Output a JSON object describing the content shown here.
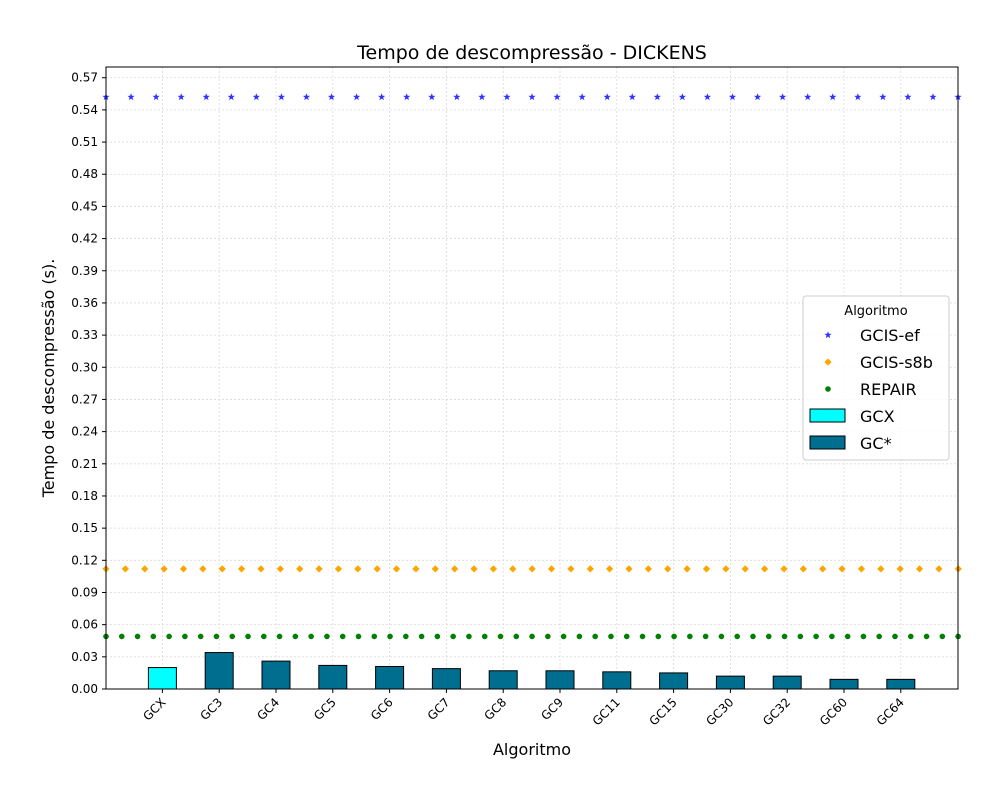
{
  "chart_data": {
    "type": "bar",
    "title": "Tempo de descompressão -  DICKENS",
    "xlabel": "Algoritmo",
    "ylabel": "Tempo de descompressão (s).",
    "categories": [
      "GCX",
      "GC3",
      "GC4",
      "GC5",
      "GC6",
      "GC7",
      "GC8",
      "GC9",
      "GC11",
      "GC15",
      "GC30",
      "GC32",
      "GC60",
      "GC64"
    ],
    "bars": {
      "values": [
        0.02,
        0.034,
        0.026,
        0.022,
        0.021,
        0.019,
        0.017,
        0.017,
        0.016,
        0.015,
        0.012,
        0.012,
        0.009,
        0.009
      ],
      "colors": [
        "#00ffff",
        "#006e8f",
        "#006e8f",
        "#006e8f",
        "#006e8f",
        "#006e8f",
        "#006e8f",
        "#006e8f",
        "#006e8f",
        "#006e8f",
        "#006e8f",
        "#006e8f",
        "#006e8f",
        "#006e8f"
      ],
      "edge_color": "#000000"
    },
    "reference_lines": [
      {
        "name": "GCIS-ef",
        "value": 0.552,
        "marker": "star",
        "color": "#3333ff"
      },
      {
        "name": "GCIS-s8b",
        "value": 0.112,
        "marker": "diamond",
        "color": "#ffa500"
      },
      {
        "name": "REPAIR",
        "value": 0.049,
        "marker": "circle",
        "color": "#008000"
      }
    ],
    "ylim": [
      0,
      0.58
    ],
    "yticks": [
      "0.00",
      "0.03",
      "0.06",
      "0.09",
      "0.12",
      "0.15",
      "0.18",
      "0.21",
      "0.24",
      "0.27",
      "0.30",
      "0.33",
      "0.36",
      "0.39",
      "0.42",
      "0.45",
      "0.48",
      "0.51",
      "0.54",
      "0.57"
    ],
    "grid": true,
    "legend": {
      "title": "Algoritmo",
      "position": "center-right",
      "entries": [
        {
          "label": "GCIS-ef",
          "kind": "marker",
          "marker": "star",
          "color": "#3333ff"
        },
        {
          "label": "GCIS-s8b",
          "kind": "marker",
          "marker": "diamond",
          "color": "#ffa500"
        },
        {
          "label": "REPAIR",
          "kind": "marker",
          "marker": "circle",
          "color": "#008000"
        },
        {
          "label": "GCX",
          "kind": "patch",
          "color": "#00ffff"
        },
        {
          "label": "GC*",
          "kind": "patch",
          "color": "#006e8f"
        }
      ]
    }
  }
}
